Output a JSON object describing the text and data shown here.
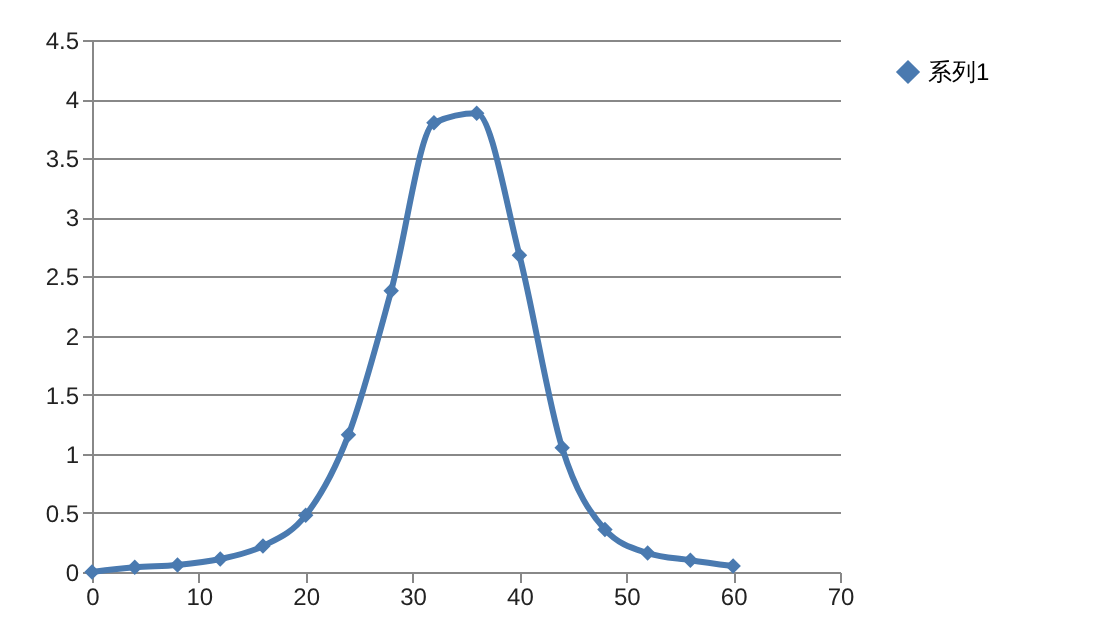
{
  "chart_data": {
    "type": "line",
    "x": [
      0,
      4,
      8,
      12,
      16,
      20,
      24,
      28,
      32,
      36,
      40,
      44,
      48,
      52,
      56,
      60
    ],
    "series": [
      {
        "name": "系列1",
        "color": "#4a7ab0",
        "values": [
          0,
          0.04,
          0.06,
          0.11,
          0.22,
          0.48,
          1.16,
          2.38,
          3.8,
          3.88,
          2.68,
          1.05,
          0.36,
          0.16,
          0.1,
          0.05
        ]
      }
    ],
    "xlim": [
      0,
      70
    ],
    "xticks": [
      0,
      10,
      20,
      30,
      40,
      50,
      60,
      70
    ],
    "ylim": [
      0,
      4.5
    ],
    "yticks": [
      0,
      0.5,
      1,
      1.5,
      2,
      2.5,
      3,
      3.5,
      4,
      4.5
    ],
    "grid": "y",
    "legend": "right",
    "marker": "diamond",
    "line_style": "solid"
  }
}
